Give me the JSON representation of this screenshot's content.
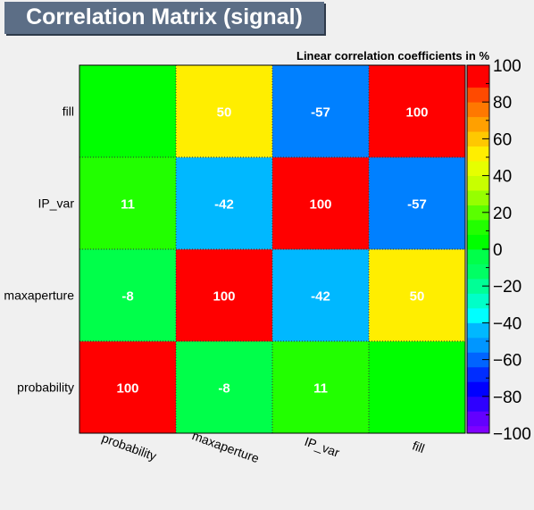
{
  "page_title": "Correlation Matrix (signal)",
  "chart_data": {
    "type": "heatmap",
    "title": "Linear correlation coefficients in %",
    "x_categories": [
      "probability",
      "maxaperture",
      "IP_var",
      "fill"
    ],
    "y_categories": [
      "probability",
      "maxaperture",
      "IP_var",
      "fill"
    ],
    "matrix": [
      [
        100,
        -8,
        11,
        0
      ],
      [
        -8,
        100,
        -42,
        50
      ],
      [
        11,
        -42,
        100,
        -57
      ],
      [
        0,
        50,
        -57,
        100
      ]
    ],
    "cell_labels": [
      [
        "100",
        "-8",
        "11",
        ""
      ],
      [
        "-8",
        "100",
        "-42",
        "50"
      ],
      [
        "11",
        "-42",
        "100",
        "-57"
      ],
      [
        "",
        "50",
        "-57",
        "100"
      ]
    ],
    "zlim": [
      -100,
      100
    ],
    "colorbar_ticks": [
      "-100",
      "-80",
      "-60",
      "-40",
      "-20",
      "0",
      "20",
      "40",
      "60",
      "80",
      "100"
    ],
    "palette": [
      "#7f00ff",
      "#6300ff",
      "#2e00ff",
      "#0000ff",
      "#002dff",
      "#0064ff",
      "#0096ff",
      "#00c8ff",
      "#00ffff",
      "#00ffc8",
      "#00ff96",
      "#00ff64",
      "#00ff3c",
      "#00ff00",
      "#32ff00",
      "#64ff00",
      "#96ff00",
      "#c8ff00",
      "#e6ff00",
      "#fff000",
      "#ffc800",
      "#ff9600",
      "#ff6400",
      "#ff3200",
      "#ff0000"
    ],
    "palette_ranges": [
      {
        "min": -100,
        "max": -96,
        "color": "#7f00ff"
      },
      {
        "min": -96,
        "max": -88,
        "color": "#6300ff"
      },
      {
        "min": -88,
        "max": -80,
        "color": "#2e00ff"
      },
      {
        "min": -80,
        "max": -72,
        "color": "#0000ff"
      },
      {
        "min": -72,
        "max": -64,
        "color": "#002dff"
      },
      {
        "min": -64,
        "max": -56,
        "color": "#0064ff"
      },
      {
        "min": -56,
        "max": -48,
        "color": "#0096ff"
      },
      {
        "min": -48,
        "max": -40,
        "color": "#00b8ff"
      },
      {
        "min": -40,
        "max": -32,
        "color": "#00ffff"
      },
      {
        "min": -32,
        "max": -24,
        "color": "#00ffc8"
      },
      {
        "min": -24,
        "max": -16,
        "color": "#00ff96"
      },
      {
        "min": -16,
        "max": -8,
        "color": "#00ff64"
      },
      {
        "min": -8,
        "max": 0,
        "color": "#00ff4a"
      },
      {
        "min": 0,
        "max": 8,
        "color": "#00ff00"
      },
      {
        "min": 8,
        "max": 16,
        "color": "#22ff00"
      },
      {
        "min": 16,
        "max": 24,
        "color": "#5aff00"
      },
      {
        "min": 24,
        "max": 32,
        "color": "#96ff00"
      },
      {
        "min": 32,
        "max": 40,
        "color": "#c8ff00"
      },
      {
        "min": 40,
        "max": 48,
        "color": "#e6ff00"
      },
      {
        "min": 48,
        "max": 56,
        "color": "#ffee00"
      },
      {
        "min": 56,
        "max": 64,
        "color": "#ffc800"
      },
      {
        "min": 64,
        "max": 72,
        "color": "#ffa000"
      },
      {
        "min": 72,
        "max": 80,
        "color": "#ff7800"
      },
      {
        "min": 80,
        "max": 88,
        "color": "#ff4a00"
      },
      {
        "min": 88,
        "max": 100,
        "color": "#ff0000"
      }
    ],
    "cell_colors": [
      [
        "#ff0000",
        "#00ff4a",
        "#22ff00",
        "#00ff00"
      ],
      [
        "#00ff4a",
        "#ff0000",
        "#00b8ff",
        "#ffee00"
      ],
      [
        "#22ff00",
        "#00b8ff",
        "#ff0000",
        "#0080ff"
      ],
      [
        "#00ff00",
        "#ffee00",
        "#0080ff",
        "#ff0000"
      ]
    ]
  }
}
